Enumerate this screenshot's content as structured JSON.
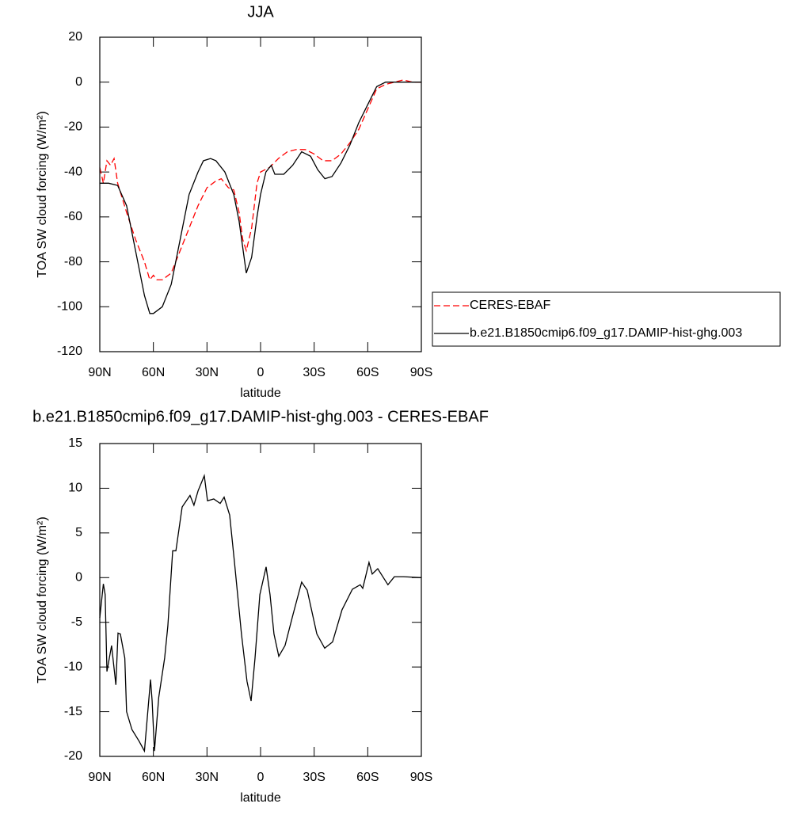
{
  "chart_data": [
    {
      "type": "line",
      "title": "JJA",
      "xlabel": "latitude",
      "ylabel": "TOA SW cloud forcing (W/m²)",
      "xlim": [
        90,
        -90
      ],
      "xticks": [
        {
          "value": 90,
          "label": "90N"
        },
        {
          "value": 60,
          "label": "60N"
        },
        {
          "value": 30,
          "label": "30N"
        },
        0,
        {
          "value": -30,
          "label": "30S"
        },
        {
          "value": -60,
          "label": "60S"
        },
        {
          "value": -90,
          "label": "90S"
        }
      ],
      "ylim": [
        -120,
        20
      ],
      "yticks": [
        -120,
        -100,
        -80,
        -60,
        -40,
        -20,
        0,
        20
      ],
      "legend": "right",
      "series": [
        {
          "name": "CERES-EBAF",
          "color": "#ff0000",
          "style": "dashed",
          "x": [
            90,
            88,
            86,
            84,
            82,
            80,
            75,
            70,
            65,
            62,
            60,
            58,
            55,
            50,
            45,
            40,
            35,
            30,
            25,
            22,
            18,
            15,
            12,
            10,
            8,
            5,
            2,
            0,
            -5,
            -10,
            -15,
            -20,
            -25,
            -30,
            -35,
            -40,
            -45,
            -50,
            -55,
            -60,
            -65,
            -70,
            -75,
            -80,
            -85,
            -90
          ],
          "values": [
            -38,
            -45,
            -35,
            -37,
            -34,
            -45,
            -58,
            -70,
            -80,
            -88,
            -86,
            -88,
            -88,
            -85,
            -75,
            -65,
            -55,
            -47,
            -44,
            -43,
            -47,
            -48,
            -58,
            -70,
            -75,
            -65,
            -45,
            -40,
            -38,
            -34,
            -31,
            -30,
            -30,
            -32,
            -35,
            -35,
            -32,
            -27,
            -21,
            -12,
            -3,
            -1,
            0,
            1,
            0,
            0
          ]
        },
        {
          "name": "b.e21.B1850cmip6.f09_g17.DAMIP-hist-ghg.003",
          "color": "#000000",
          "style": "solid",
          "x": [
            90,
            85,
            80,
            75,
            70,
            65,
            62,
            60,
            55,
            50,
            45,
            40,
            35,
            32,
            28,
            25,
            20,
            15,
            12,
            8,
            5,
            2,
            0,
            -3,
            -6,
            -8,
            -13,
            -18,
            -23,
            -28,
            -32,
            -36,
            -40,
            -45,
            -50,
            -55,
            -60,
            -65,
            -70,
            -75,
            -80,
            -90
          ],
          "values": [
            -45,
            -45,
            -46,
            -55,
            -75,
            -95,
            -103,
            -103,
            -100,
            -90,
            -70,
            -50,
            -40,
            -35,
            -34,
            -35,
            -40,
            -50,
            -62,
            -85,
            -78,
            -60,
            -50,
            -40,
            -37,
            -41,
            -41,
            -37,
            -31,
            -33,
            -39,
            -43,
            -42,
            -36,
            -28,
            -18,
            -10,
            -2,
            0,
            0,
            0,
            0
          ]
        }
      ]
    },
    {
      "type": "line",
      "title": "b.e21.B1850cmip6.f09_g17.DAMIP-hist-ghg.003 - CERES-EBAF",
      "xlabel": "latitude",
      "ylabel": "TOA SW cloud forcing (W/m²)",
      "xlim": [
        90,
        -90
      ],
      "xticks": [
        {
          "value": 90,
          "label": "90N"
        },
        {
          "value": 60,
          "label": "60N"
        },
        {
          "value": 30,
          "label": "30N"
        },
        0,
        {
          "value": -30,
          "label": "30S"
        },
        {
          "value": -60,
          "label": "60S"
        },
        {
          "value": -90,
          "label": "90S"
        }
      ],
      "ylim": [
        -20,
        15
      ],
      "yticks": [
        -20,
        -15,
        -10,
        -5,
        0,
        5,
        10,
        15
      ],
      "series": [
        {
          "color": "#000000",
          "style": "solid",
          "x": [
            90,
            88,
            87,
            86,
            83.4,
            81,
            79.8,
            78.5,
            76,
            75,
            72,
            68,
            65,
            61.6,
            60.7,
            59.4,
            57,
            53.7,
            51.9,
            49.2,
            47.4,
            43.9,
            39.5,
            37.3,
            35,
            31.5,
            29.7,
            26.2,
            22.6,
            20.4,
            17.3,
            14.6,
            10.7,
            7.6,
            5.3,
            3.1,
            0.4,
            -3.1,
            -5.3,
            -7.5,
            -10.2,
            -13.7,
            -18.2,
            -23,
            -26.1,
            -31.5,
            -35.9,
            -40.3,
            -45.6,
            -51.4,
            -55.8,
            -57.2,
            -60.7,
            -62.5,
            -65.6,
            -71.3,
            -74.9,
            -80,
            -90
          ],
          "values": [
            -4.5,
            -0.7,
            -1.9,
            -10.5,
            -7.6,
            -12,
            -6.2,
            -6.3,
            -9,
            -15,
            -17,
            -18.3,
            -19.4,
            -11.4,
            -13.8,
            -19.4,
            -13.4,
            -9,
            -5.4,
            3,
            3,
            7.9,
            9.2,
            8.1,
            9.7,
            11.4,
            8.6,
            8.8,
            8.3,
            9,
            7,
            1.7,
            -6.3,
            -11.6,
            -13.8,
            -9,
            -1.9,
            1.2,
            -1.9,
            -6.3,
            -8.8,
            -7.6,
            -4.1,
            -0.5,
            -1.4,
            -6.3,
            -7.9,
            -7.2,
            -3.6,
            -1.3,
            -0.8,
            -1.2,
            1.7,
            0.4,
            1,
            -0.8,
            0.1,
            0.1,
            0
          ]
        }
      ]
    }
  ]
}
